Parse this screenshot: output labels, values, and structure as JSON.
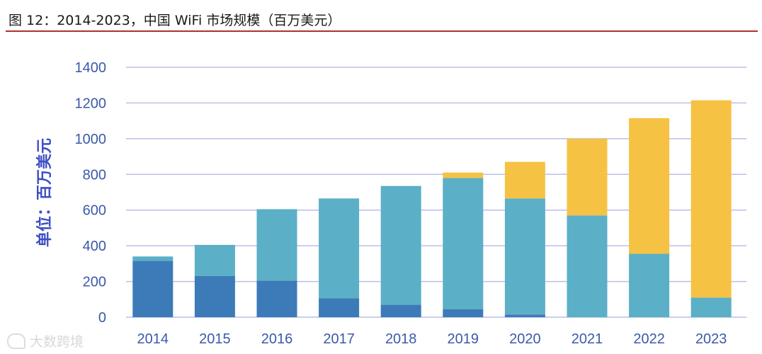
{
  "figure": {
    "title": "图 12：2014-2023，中国 WiFi 市场规模（百万美元）",
    "watermark": "大数跨境"
  },
  "chart_data": {
    "type": "bar",
    "stacked": true,
    "title": "图 12：2014-2023，中国 WiFi 市场规模（百万美元）",
    "xlabel": "",
    "ylabel": "单位：百万美元",
    "categories": [
      "2014",
      "2015",
      "2016",
      "2017",
      "2018",
      "2019",
      "2020",
      "2021",
      "2022",
      "2023"
    ],
    "ylim": [
      0,
      1400
    ],
    "yticks": [
      0,
      200,
      400,
      600,
      800,
      1000,
      1200,
      1400
    ],
    "grid": true,
    "legend": "none",
    "series": [
      {
        "name": "dark-blue",
        "color": "#3c7ab8",
        "values": [
          315,
          230,
          205,
          105,
          70,
          45,
          15,
          0,
          0,
          0
        ]
      },
      {
        "name": "light-blue",
        "color": "#5bafc6",
        "values": [
          25,
          175,
          400,
          560,
          665,
          735,
          650,
          570,
          355,
          110
        ]
      },
      {
        "name": "yellow",
        "color": "#f6c244",
        "values": [
          0,
          0,
          0,
          0,
          0,
          30,
          205,
          430,
          760,
          1105
        ]
      }
    ],
    "grid_color": "#b9bfe8"
  }
}
